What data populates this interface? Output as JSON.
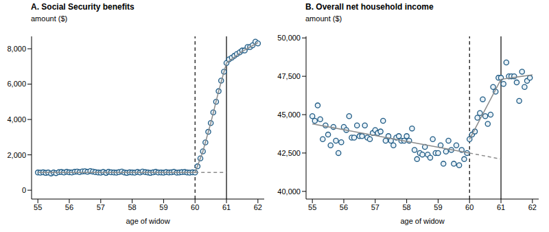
{
  "chart_data": [
    {
      "type": "scatter",
      "title": "A. Social Security benefits",
      "ylabel": "amount ($)",
      "xlabel": "age of widow",
      "xlim": [
        54.8,
        62.2
      ],
      "xticks": [
        55,
        56,
        57,
        58,
        59,
        60,
        61,
        62
      ],
      "ylim": [
        -500,
        8700
      ],
      "yticks": [
        0,
        {
          "value": 2000,
          "label": "2,000"
        },
        {
          "value": 4000,
          "label": "4,000"
        },
        {
          "value": 6000,
          "label": "6,000"
        },
        {
          "value": 8000,
          "label": "8,000"
        }
      ],
      "reference_lines": [
        {
          "x": 60,
          "line_style": "dashed",
          "color": "#000000"
        },
        {
          "x": 61,
          "line_style": "solid",
          "color": "#000000"
        }
      ],
      "series": [
        {
          "type": "scatter",
          "marker": "circle",
          "color": "#1f5b85",
          "x": [
            55,
            55.08,
            55.17,
            55.25,
            55.33,
            55.42,
            55.5,
            55.58,
            55.67,
            55.75,
            55.83,
            55.92,
            56,
            56.08,
            56.17,
            56.25,
            56.33,
            56.42,
            56.5,
            56.58,
            56.67,
            56.75,
            56.83,
            56.92,
            57,
            57.08,
            57.17,
            57.25,
            57.33,
            57.42,
            57.5,
            57.58,
            57.67,
            57.75,
            57.83,
            57.92,
            58,
            58.08,
            58.17,
            58.25,
            58.33,
            58.42,
            58.5,
            58.58,
            58.67,
            58.75,
            58.83,
            58.92,
            59,
            59.08,
            59.17,
            59.25,
            59.33,
            59.42,
            59.5,
            59.58,
            59.67,
            59.75,
            59.83,
            59.92,
            60,
            60.08,
            60.17,
            60.25,
            60.33,
            60.42,
            60.5,
            60.58,
            60.67,
            60.75,
            60.83,
            60.92,
            61,
            61.08,
            61.17,
            61.25,
            61.33,
            61.42,
            61.5,
            61.58,
            61.67,
            61.75,
            61.83,
            61.92,
            62
          ],
          "values": [
            1000,
            990,
            1010,
            980,
            1000,
            950,
            1000,
            970,
            1020,
            1030,
            1000,
            1040,
            1010,
            1000,
            1040,
            1050,
            1020,
            1060,
            1070,
            1040,
            1080,
            1050,
            1020,
            1000,
            990,
            1030,
            980,
            1040,
            1010,
            1000,
            990,
            1020,
            1050,
            1000,
            980,
            1010,
            1000,
            990,
            1030,
            1000,
            1050,
            1020,
            1000,
            980,
            1010,
            1040,
            1000,
            1000,
            990,
            1020,
            1000,
            1010,
            1040,
            990,
            1000,
            1020,
            1030,
            1000,
            990,
            1010,
            1000,
            1350,
            1800,
            2200,
            2700,
            3300,
            3800,
            4400,
            5000,
            5600,
            6200,
            6700,
            7200,
            7400,
            7500,
            7600,
            7700,
            7800,
            7900,
            7900,
            8100,
            8100,
            8200,
            8400,
            8300
          ]
        },
        {
          "type": "line",
          "line_style": "solid",
          "color": "#8a8a8a",
          "x": [
            55,
            60
          ],
          "values": [
            1000,
            1000
          ]
        },
        {
          "type": "line",
          "line_style": "dashed",
          "color": "#8a8a8a",
          "x": [
            60,
            61
          ],
          "values": [
            1000,
            1000
          ]
        },
        {
          "type": "line",
          "line_style": "solid",
          "color": "#8a8a8a",
          "x": [
            60,
            60.25,
            60.5,
            60.75,
            61,
            61.5,
            62
          ],
          "values": [
            1000,
            2200,
            3800,
            5600,
            7200,
            7850,
            8350
          ]
        }
      ]
    },
    {
      "type": "scatter",
      "title": "B. Overall net household income",
      "ylabel": "amount ($)",
      "xlabel": "age of widow",
      "xlim": [
        54.8,
        62.2
      ],
      "xticks": [
        55,
        56,
        57,
        58,
        59,
        60,
        61,
        62
      ],
      "ylim": [
        39500,
        50100
      ],
      "yticks": [
        {
          "value": 40000,
          "label": "40,000"
        },
        {
          "value": 42500,
          "label": "42,500"
        },
        {
          "value": 45000,
          "label": "45,000"
        },
        {
          "value": 47500,
          "label": "47,500"
        },
        {
          "value": 50000,
          "label": "50,000"
        }
      ],
      "reference_lines": [
        {
          "x": 60,
          "line_style": "dashed",
          "color": "#000000"
        },
        {
          "x": 61,
          "line_style": "solid",
          "color": "#000000"
        }
      ],
      "series": [
        {
          "type": "scatter",
          "marker": "circle",
          "color": "#1f5b85",
          "x": [
            55,
            55.08,
            55.17,
            55.25,
            55.33,
            55.42,
            55.5,
            55.58,
            55.67,
            55.75,
            55.83,
            55.92,
            56,
            56.08,
            56.17,
            56.25,
            56.33,
            56.42,
            56.5,
            56.58,
            56.67,
            56.75,
            56.83,
            56.92,
            57,
            57.08,
            57.17,
            57.25,
            57.33,
            57.42,
            57.5,
            57.58,
            57.67,
            57.75,
            57.83,
            57.92,
            58,
            58.08,
            58.17,
            58.25,
            58.33,
            58.42,
            58.5,
            58.58,
            58.67,
            58.75,
            58.83,
            58.92,
            59,
            59.08,
            59.17,
            59.25,
            59.33,
            59.42,
            59.5,
            59.58,
            59.67,
            59.75,
            59.83,
            59.92,
            60,
            60.08,
            60.17,
            60.25,
            60.33,
            60.42,
            60.5,
            60.58,
            60.67,
            60.75,
            60.83,
            60.92,
            61,
            61.08,
            61.17,
            61.25,
            61.33,
            61.42,
            61.5,
            61.58,
            61.67,
            61.75,
            61.83,
            61.92
          ],
          "values": [
            44900,
            44600,
            45600,
            44700,
            43400,
            44300,
            43700,
            43000,
            44200,
            43300,
            42500,
            43200,
            44200,
            44000,
            44900,
            43500,
            43500,
            44300,
            43600,
            43600,
            44300,
            43500,
            43400,
            43800,
            44000,
            43800,
            43900,
            44600,
            43300,
            43600,
            43300,
            43000,
            43500,
            43600,
            43300,
            43300,
            43600,
            43300,
            44100,
            42700,
            42100,
            42500,
            42400,
            42900,
            42400,
            42200,
            43400,
            42500,
            42500,
            43000,
            41800,
            42600,
            43300,
            42700,
            41800,
            43000,
            41700,
            42700,
            42100,
            42500,
            43400,
            43700,
            43900,
            44800,
            45100,
            46000,
            44900,
            44400,
            45000,
            46800,
            46500,
            47400,
            47400,
            47000,
            48400,
            47500,
            47500,
            47500,
            47100,
            45900,
            47800,
            46800,
            47200,
            47400
          ]
        },
        {
          "type": "line",
          "line_style": "solid",
          "color": "#8a8a8a",
          "x": [
            55,
            60
          ],
          "values": [
            44400,
            42500
          ]
        },
        {
          "type": "line",
          "line_style": "dashed",
          "color": "#8a8a8a",
          "x": [
            60,
            61
          ],
          "values": [
            42500,
            42100
          ]
        },
        {
          "type": "line",
          "line_style": "solid",
          "color": "#8a8a8a",
          "x": [
            60,
            61,
            62
          ],
          "values": [
            43400,
            47300,
            47600
          ]
        }
      ]
    }
  ]
}
